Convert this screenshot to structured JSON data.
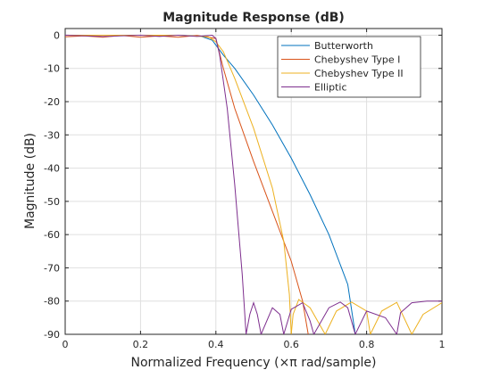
{
  "chart_data": {
    "type": "line",
    "title": "Magnitude Response (dB)",
    "xlabel": "Normalized Frequency (×π rad/sample)",
    "ylabel": "Magnitude (dB)",
    "xlim": [
      0,
      1
    ],
    "ylim": [
      -90,
      2
    ],
    "xticks": [
      0,
      0.2,
      0.4,
      0.6,
      0.8,
      1
    ],
    "xtick_labels": [
      "0",
      "0.2",
      "0.4",
      "0.6",
      "0.8",
      "1"
    ],
    "yticks": [
      0,
      -10,
      -20,
      -30,
      -40,
      -50,
      -60,
      -70,
      -80,
      -90
    ],
    "ytick_labels": [
      "0",
      "-10",
      "-20",
      "-30",
      "-40",
      "-50",
      "-60",
      "-70",
      "-80",
      "-90"
    ],
    "grid": true,
    "legend_position": "top-right",
    "series": [
      {
        "name": "Butterworth",
        "color": "#0072BD",
        "x": [
          0,
          0.1,
          0.2,
          0.3,
          0.36,
          0.39,
          0.4,
          0.42,
          0.45,
          0.5,
          0.55,
          0.6,
          0.65,
          0.7,
          0.75,
          0.77
        ],
        "y": [
          0,
          0,
          0,
          0,
          -0.3,
          -1.5,
          -3,
          -6,
          -10,
          -18,
          -27,
          -37,
          -48,
          -60,
          -75,
          -90
        ]
      },
      {
        "name": "Chebyshev Type I",
        "color": "#D95319",
        "x": [
          0,
          0.05,
          0.1,
          0.15,
          0.2,
          0.25,
          0.3,
          0.35,
          0.4,
          0.42,
          0.45,
          0.5,
          0.55,
          0.6,
          0.63,
          0.645
        ],
        "y": [
          -0.5,
          -0.2,
          -0.6,
          -0.1,
          -0.6,
          -0.2,
          -0.6,
          -0.1,
          -1,
          -10,
          -22,
          -38,
          -53,
          -68,
          -80,
          -90
        ]
      },
      {
        "name": "Chebyshev Type II",
        "color": "#EDB120",
        "x": [
          0,
          0.1,
          0.2,
          0.3,
          0.38,
          0.4,
          0.42,
          0.45,
          0.5,
          0.55,
          0.58,
          0.595,
          0.6,
          0.605,
          0.62,
          0.65,
          0.69,
          0.72,
          0.76,
          0.8,
          0.81,
          0.84,
          0.88,
          0.92,
          0.95,
          1
        ],
        "y": [
          0,
          0,
          0,
          0,
          -0.5,
          -2,
          -5,
          -13,
          -28,
          -46,
          -62,
          -78,
          -90,
          -84,
          -79.5,
          -82,
          -90,
          -83,
          -80.3,
          -83,
          -90,
          -83,
          -80.4,
          -90,
          -84,
          -80.5
        ]
      },
      {
        "name": "Elliptic",
        "color": "#7E2F8E",
        "x": [
          0,
          0.1,
          0.2,
          0.25,
          0.3,
          0.35,
          0.39,
          0.4,
          0.41,
          0.43,
          0.45,
          0.47,
          0.48,
          0.49,
          0.5,
          0.51,
          0.52,
          0.55,
          0.57,
          0.58,
          0.6,
          0.63,
          0.65,
          0.66,
          0.7,
          0.73,
          0.75,
          0.77,
          0.8,
          0.85,
          0.88,
          0.89,
          0.92,
          0.96,
          1
        ],
        "y": [
          0,
          -0.4,
          0,
          -0.4,
          0,
          -0.4,
          0,
          -1,
          -6,
          -22,
          -45,
          -72,
          -90,
          -84,
          -80.5,
          -84,
          -90,
          -82,
          -84,
          -90,
          -82.5,
          -80.5,
          -86,
          -90,
          -82,
          -80.3,
          -82,
          -90,
          -83,
          -85,
          -90,
          -83.5,
          -80.5,
          -80,
          -80
        ]
      }
    ]
  }
}
